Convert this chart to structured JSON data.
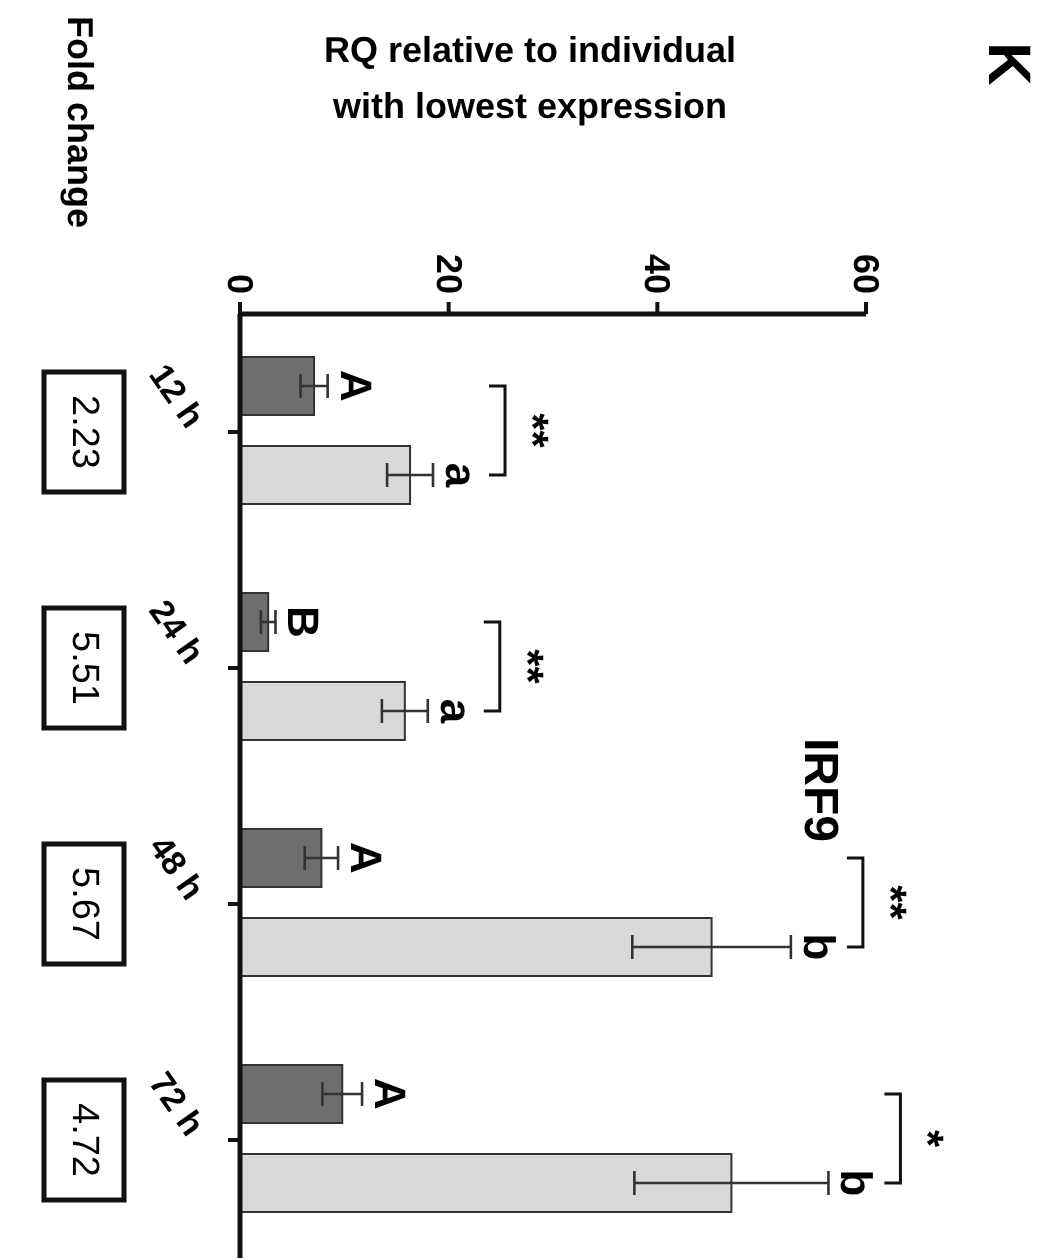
{
  "chart_data": {
    "type": "bar",
    "orientation": "horizontal",
    "title": "IRF9",
    "xlabel": "RQ relative to individual with lowest expression",
    "categories": [
      "12 h",
      "24 h",
      "48 h",
      "72 h"
    ],
    "series": [
      {
        "color": "#6e6e6e",
        "values": [
          7.1,
          2.7,
          7.8,
          9.8
        ],
        "errors": [
          1.3,
          0.7,
          1.6,
          1.9
        ]
      },
      {
        "color": "#d9d9d9",
        "values": [
          16.3,
          15.8,
          45.2,
          47.1
        ],
        "errors": [
          2.2,
          2.2,
          7.6,
          9.3
        ]
      }
    ],
    "xlim": [
      0,
      60
    ],
    "xticks": [
      0,
      20,
      40,
      60
    ],
    "grid": false,
    "annotations": [
      "K",
      "Fold change",
      "2.23",
      "5.51",
      "5.67",
      "4.72",
      "A",
      "a",
      "B",
      "a",
      "A",
      "b",
      "A",
      "b",
      "**",
      "**",
      "**",
      "*"
    ]
  }
}
